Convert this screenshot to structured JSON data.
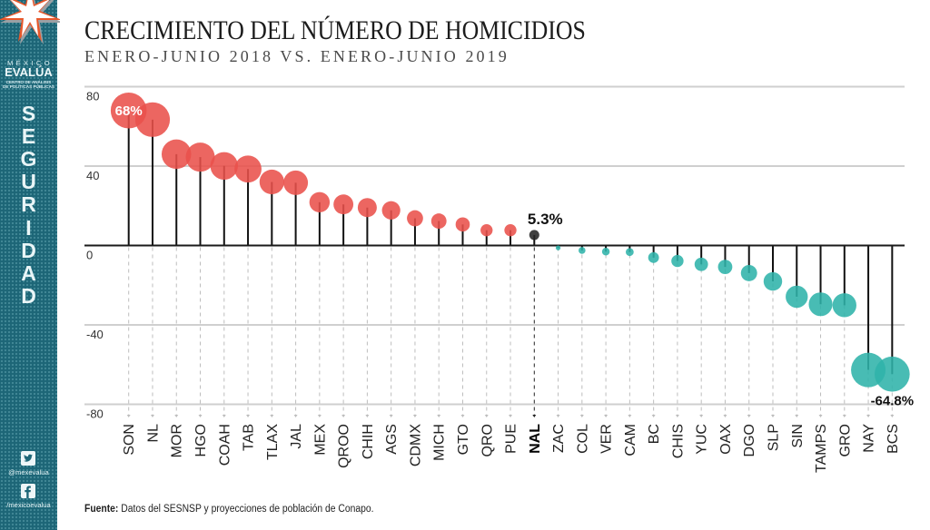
{
  "sidebar": {
    "logo": {
      "icon": "star-logo-icon",
      "country": "MÉXICO",
      "brand": "EVALÚA",
      "tagline_line1": "CENTRO DE ANÁLISIS",
      "tagline_line2": "DE POLÍTICAS PÚBLICAS"
    },
    "section": "SEGURIDAD",
    "social": [
      {
        "icon": "twitter-icon",
        "handle": "@mexevalua"
      },
      {
        "icon": "facebook-icon",
        "handle": "/mexicoevalua"
      }
    ]
  },
  "colors": {
    "sidebar": "#1d6677",
    "increase": "#e9514b",
    "decrease": "#2fb3aa",
    "national": "#262626",
    "gridline": "#cfcfcf"
  },
  "chart_data": {
    "type": "bar",
    "style": "lollipop-bubble",
    "title": "CRECIMIENTO DEL NÚMERO DE HOMICIDIOS",
    "subtitle": "ENERO-JUNIO 2018 VS. ENERO-JUNIO 2019",
    "xlabel": "",
    "ylabel": "",
    "ylim": [
      -80,
      80
    ],
    "yticks": [
      80,
      40,
      0,
      -40,
      -80
    ],
    "grid": true,
    "legend": "none",
    "highlight_category": "NAL",
    "categories": [
      "SON",
      "NL",
      "MOR",
      "HGO",
      "COAH",
      "TAB",
      "TLAX",
      "JAL",
      "MEX",
      "QROO",
      "CHIH",
      "AGS",
      "CDMX",
      "MICH",
      "GTO",
      "QRO",
      "PUE",
      "NAL",
      "ZAC",
      "COL",
      "VER",
      "CAM",
      "BC",
      "CHIS",
      "YUC",
      "OAX",
      "DGO",
      "SLP",
      "SIN",
      "TAMPS",
      "GRO",
      "NAY",
      "BCS"
    ],
    "values": [
      68,
      63.4,
      46,
      44.5,
      40.1,
      38.5,
      32,
      31.6,
      21.8,
      20.7,
      19.1,
      17.7,
      13.7,
      12.3,
      10.6,
      7.7,
      7.7,
      5.3,
      -1.2,
      -2.5,
      -3.1,
      -3.3,
      -6.1,
      -7.8,
      -9.5,
      -10.8,
      -13.9,
      -18.1,
      -25.8,
      -29.6,
      -30.1,
      -62.7,
      -64.8
    ],
    "annotations": [
      {
        "category": "SON",
        "text": "68%",
        "placement": "inside"
      },
      {
        "category": "NAL",
        "text": "5.3%",
        "placement": "above-right"
      },
      {
        "category": "BCS",
        "text": "-64.8%",
        "placement": "below"
      }
    ]
  },
  "footer": {
    "source_label": "Fuente:",
    "source_text": " Datos del SESNSP y proyecciones de población de Conapo."
  }
}
